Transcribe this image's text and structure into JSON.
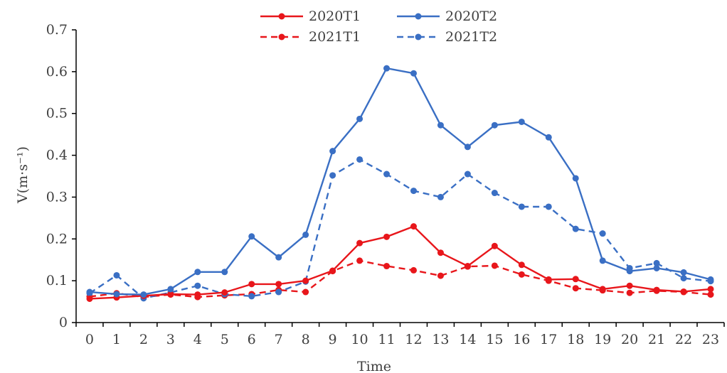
{
  "chart_data": {
    "type": "line",
    "xlabel": "Time",
    "ylabel": "V(m·s⁻¹)",
    "ylim": [
      0,
      0.7
    ],
    "yticks": [
      "0",
      "0.1",
      "0.2",
      "0.3",
      "0.4",
      "0.5",
      "0.6",
      "0.7"
    ],
    "x": [
      "0",
      "1",
      "2",
      "3",
      "4",
      "5",
      "6",
      "7",
      "8",
      "9",
      "10",
      "11",
      "12",
      "13",
      "14",
      "15",
      "16",
      "17",
      "18",
      "19",
      "20",
      "21",
      "22",
      "23"
    ],
    "legend_position": "top",
    "grid": false,
    "series": [
      {
        "name": "2020T1",
        "color": "#e8161b",
        "dash": "solid",
        "values": [
          0.057,
          0.06,
          0.064,
          0.068,
          0.067,
          0.072,
          0.092,
          0.092,
          0.1,
          0.124,
          0.19,
          0.205,
          0.23,
          0.167,
          0.135,
          0.183,
          0.138,
          0.103,
          0.104,
          0.08,
          0.088,
          0.078,
          0.074,
          0.08
        ]
      },
      {
        "name": "2020T2",
        "color": "#3a6fc4",
        "dash": "solid",
        "values": [
          0.073,
          0.068,
          0.067,
          0.08,
          0.121,
          0.121,
          0.206,
          0.156,
          0.21,
          0.41,
          0.487,
          0.608,
          0.596,
          0.472,
          0.42,
          0.472,
          0.48,
          0.443,
          0.345,
          0.148,
          0.123,
          0.13,
          0.12,
          0.103
        ]
      },
      {
        "name": "2021T1",
        "color": "#e8161b",
        "dash": "dashed",
        "values": [
          0.062,
          0.07,
          0.061,
          0.067,
          0.061,
          0.065,
          0.068,
          0.078,
          0.073,
          0.123,
          0.148,
          0.135,
          0.125,
          0.112,
          0.134,
          0.136,
          0.115,
          0.1,
          0.082,
          0.077,
          0.071,
          0.076,
          0.073,
          0.067
        ]
      },
      {
        "name": "2021T2",
        "color": "#3a6fc4",
        "dash": "dashed",
        "values": [
          0.07,
          0.113,
          0.058,
          0.072,
          0.088,
          0.068,
          0.063,
          0.073,
          0.098,
          0.352,
          0.39,
          0.355,
          0.315,
          0.3,
          0.355,
          0.31,
          0.277,
          0.277,
          0.224,
          0.213,
          0.13,
          0.142,
          0.106,
          0.099
        ]
      }
    ]
  }
}
